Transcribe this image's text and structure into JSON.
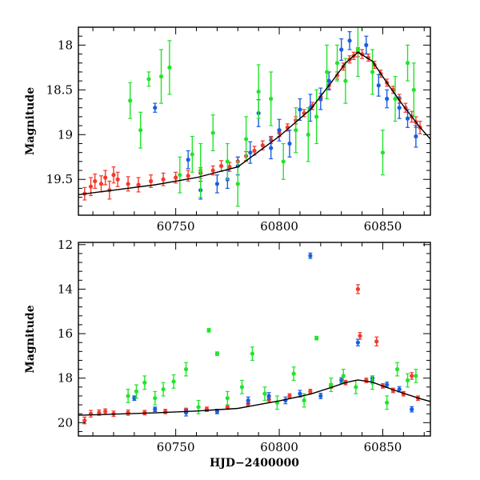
{
  "colors": {
    "green": "#22e52a",
    "blue": "#1a5fe0",
    "red": "#f23b2b",
    "model": "#000000"
  },
  "chart_data": [
    {
      "type": "scatter",
      "xlabel": "",
      "ylabel": "Magnitude",
      "xlim": [
        60703,
        60873
      ],
      "ylim": [
        19.9,
        17.8
      ],
      "y_inverted": true,
      "xticks": [
        60750,
        60800,
        60850
      ],
      "yticks": [
        18,
        18.5,
        19,
        19.5
      ],
      "error_bars": true,
      "grid": false,
      "legend": "none",
      "model_curve": {
        "x": [
          60703,
          60720,
          60740,
          60760,
          60780,
          60800,
          60815,
          60825,
          60832,
          60838,
          60845,
          60852,
          60860,
          60868,
          60873
        ],
        "y": [
          19.67,
          19.62,
          19.56,
          19.48,
          19.36,
          19.02,
          18.72,
          18.42,
          18.2,
          18.08,
          18.18,
          18.42,
          18.68,
          18.92,
          19.05
        ]
      },
      "series": [
        {
          "color_key": "red",
          "points": [
            [
              60706,
              19.66,
              0.07
            ],
            [
              60709,
              19.58,
              0.1
            ],
            [
              60711,
              19.52,
              0.08
            ],
            [
              60714,
              19.55,
              0.09
            ],
            [
              60716,
              19.48,
              0.08
            ],
            [
              60718,
              19.62,
              0.1
            ],
            [
              60720,
              19.45,
              0.09
            ],
            [
              60722,
              19.5,
              0.08
            ],
            [
              60727,
              19.55,
              0.08
            ],
            [
              60732,
              19.56,
              0.08
            ],
            [
              60738,
              19.52,
              0.07
            ],
            [
              60744,
              19.5,
              0.07
            ],
            [
              60750,
              19.48,
              0.06
            ],
            [
              60756,
              19.46,
              0.06
            ],
            [
              60762,
              19.43,
              0.06
            ],
            [
              60768,
              19.4,
              0.05
            ],
            [
              60772,
              19.35,
              0.06
            ],
            [
              60776,
              19.36,
              0.05
            ],
            [
              60780,
              19.3,
              0.05
            ],
            [
              60784,
              19.24,
              0.05
            ],
            [
              60788,
              19.18,
              0.05
            ],
            [
              60792,
              19.12,
              0.05
            ],
            [
              60796,
              19.06,
              0.04
            ],
            [
              60800,
              18.98,
              0.04
            ],
            [
              60804,
              18.92,
              0.04
            ],
            [
              60808,
              18.84,
              0.04
            ],
            [
              60812,
              18.76,
              0.04
            ],
            [
              60816,
              18.68,
              0.04
            ],
            [
              60820,
              18.58,
              0.04
            ],
            [
              60824,
              18.45,
              0.04
            ],
            [
              60828,
              18.34,
              0.04
            ],
            [
              60831,
              18.24,
              0.04
            ],
            [
              60834,
              18.16,
              0.04
            ],
            [
              60836,
              18.12,
              0.04
            ],
            [
              60838,
              18.08,
              0.05
            ],
            [
              60840,
              18.1,
              0.05
            ],
            [
              60843,
              18.14,
              0.04
            ],
            [
              60846,
              18.22,
              0.04
            ],
            [
              60849,
              18.32,
              0.04
            ],
            [
              60852,
              18.42,
              0.04
            ],
            [
              60855,
              18.5,
              0.04
            ],
            [
              60858,
              18.6,
              0.05
            ],
            [
              60861,
              18.7,
              0.05
            ],
            [
              60864,
              18.8,
              0.06
            ],
            [
              60866,
              18.86,
              0.06
            ],
            [
              60868,
              18.92,
              0.07
            ]
          ]
        },
        {
          "color_key": "blue",
          "points": [
            [
              60740,
              18.7,
              0.05
            ],
            [
              60756,
              19.28,
              0.1
            ],
            [
              60762,
              19.62,
              0.1
            ],
            [
              60770,
              19.55,
              0.1
            ],
            [
              60775,
              19.5,
              0.1
            ],
            [
              60780,
              19.35,
              0.1
            ],
            [
              60786,
              19.2,
              0.12
            ],
            [
              60790,
              18.76,
              0.15
            ],
            [
              60796,
              19.15,
              0.12
            ],
            [
              60800,
              18.95,
              0.12
            ],
            [
              60805,
              19.1,
              0.15
            ],
            [
              60810,
              18.72,
              0.12
            ],
            [
              60815,
              18.7,
              0.15
            ],
            [
              60820,
              18.6,
              0.12
            ],
            [
              60824,
              18.4,
              0.1
            ],
            [
              60830,
              18.05,
              0.12
            ],
            [
              60834,
              17.95,
              0.1
            ],
            [
              60842,
              18.0,
              0.1
            ],
            [
              60848,
              18.45,
              0.12
            ],
            [
              60852,
              18.6,
              0.1
            ],
            [
              60858,
              18.7,
              0.12
            ],
            [
              60862,
              18.82,
              0.1
            ],
            [
              60866,
              19.02,
              0.12
            ]
          ]
        },
        {
          "color_key": "green",
          "points": [
            [
              60728,
              18.62,
              0.2
            ],
            [
              60733,
              18.95,
              0.2
            ],
            [
              60737,
              18.38,
              0.08
            ],
            [
              60743,
              18.35,
              0.3
            ],
            [
              60747,
              18.25,
              0.3
            ],
            [
              60752,
              19.45,
              0.2
            ],
            [
              60758,
              19.22,
              0.2
            ],
            [
              60762,
              19.4,
              0.3
            ],
            [
              60768,
              18.98,
              0.2
            ],
            [
              60775,
              19.3,
              0.2
            ],
            [
              60780,
              19.55,
              0.25
            ],
            [
              60784,
              19.05,
              0.25
            ],
            [
              60790,
              18.52,
              0.3
            ],
            [
              60796,
              18.6,
              0.3
            ],
            [
              60802,
              19.3,
              0.2
            ],
            [
              60808,
              18.95,
              0.25
            ],
            [
              60814,
              19.0,
              0.3
            ],
            [
              60818,
              18.8,
              0.3
            ],
            [
              60823,
              18.3,
              0.3
            ],
            [
              60828,
              18.2,
              0.2
            ],
            [
              60832,
              18.4,
              0.25
            ],
            [
              60838,
              18.05,
              0.3
            ],
            [
              60845,
              18.3,
              0.25
            ],
            [
              60850,
              19.2,
              0.25
            ],
            [
              60856,
              18.6,
              0.25
            ],
            [
              60862,
              18.2,
              0.2
            ],
            [
              60865,
              18.5,
              0.3
            ]
          ]
        }
      ]
    },
    {
      "type": "scatter",
      "xlabel": "HJD−2400000",
      "ylabel": "Magnitude",
      "xlim": [
        60703,
        60873
      ],
      "ylim": [
        20.6,
        11.9
      ],
      "y_inverted": true,
      "xticks": [
        60750,
        60800,
        60850
      ],
      "yticks": [
        12,
        14,
        16,
        18,
        20
      ],
      "error_bars": true,
      "grid": false,
      "legend": "none",
      "model_curve": {
        "x": [
          60703,
          60720,
          60740,
          60760,
          60780,
          60800,
          60815,
          60825,
          60832,
          60838,
          60845,
          60852,
          60860,
          60868,
          60873
        ],
        "y": [
          19.67,
          19.62,
          19.56,
          19.48,
          19.36,
          19.02,
          18.72,
          18.42,
          18.2,
          18.08,
          18.18,
          18.42,
          18.68,
          18.92,
          19.05
        ]
      },
      "series": [
        {
          "color_key": "red",
          "points": [
            [
              60706,
              19.9,
              0.15
            ],
            [
              60709,
              19.6,
              0.15
            ],
            [
              60713,
              19.55,
              0.12
            ],
            [
              60716,
              19.5,
              0.12
            ],
            [
              60720,
              19.6,
              0.12
            ],
            [
              60727,
              19.55,
              0.12
            ],
            [
              60735,
              19.55,
              0.1
            ],
            [
              60745,
              19.5,
              0.1
            ],
            [
              60755,
              19.45,
              0.1
            ],
            [
              60765,
              19.4,
              0.1
            ],
            [
              60775,
              19.3,
              0.1
            ],
            [
              60785,
              19.15,
              0.1
            ],
            [
              60795,
              18.95,
              0.1
            ],
            [
              60805,
              18.8,
              0.1
            ],
            [
              60815,
              18.6,
              0.1
            ],
            [
              60825,
              18.35,
              0.1
            ],
            [
              60832,
              18.2,
              0.1
            ],
            [
              60838,
              14.0,
              0.2
            ],
            [
              60839,
              16.1,
              0.15
            ],
            [
              60842,
              18.1,
              0.1
            ],
            [
              60847,
              16.35,
              0.2
            ],
            [
              60850,
              18.35,
              0.1
            ],
            [
              60855,
              18.55,
              0.1
            ],
            [
              60860,
              18.7,
              0.1
            ],
            [
              60864,
              17.9,
              0.15
            ],
            [
              60867,
              18.9,
              0.1
            ]
          ]
        },
        {
          "color_key": "blue",
          "points": [
            [
              60730,
              18.9,
              0.1
            ],
            [
              60740,
              19.4,
              0.1
            ],
            [
              60755,
              19.55,
              0.15
            ],
            [
              60770,
              19.5,
              0.1
            ],
            [
              60785,
              19.0,
              0.15
            ],
            [
              60795,
              18.8,
              0.15
            ],
            [
              60803,
              19.0,
              0.15
            ],
            [
              60810,
              18.7,
              0.15
            ],
            [
              60815,
              12.5,
              0.12
            ],
            [
              60820,
              18.8,
              0.12
            ],
            [
              60830,
              18.1,
              0.12
            ],
            [
              60838,
              16.4,
              0.15
            ],
            [
              60845,
              18.0,
              0.1
            ],
            [
              60852,
              18.3,
              0.12
            ],
            [
              60858,
              18.5,
              0.12
            ],
            [
              60864,
              19.4,
              0.12
            ]
          ]
        },
        {
          "color_key": "green",
          "points": [
            [
              60727,
              18.8,
              0.3
            ],
            [
              60731,
              18.6,
              0.3
            ],
            [
              60735,
              18.2,
              0.3
            ],
            [
              60740,
              18.9,
              0.3
            ],
            [
              60744,
              18.5,
              0.3
            ],
            [
              60749,
              18.15,
              0.3
            ],
            [
              60755,
              17.6,
              0.3
            ],
            [
              60761,
              19.3,
              0.3
            ],
            [
              60766,
              15.85,
              0.08
            ],
            [
              60770,
              16.9,
              0.08
            ],
            [
              60775,
              18.9,
              0.3
            ],
            [
              60782,
              18.4,
              0.3
            ],
            [
              60787,
              16.9,
              0.3
            ],
            [
              60793,
              18.7,
              0.3
            ],
            [
              60799,
              19.1,
              0.3
            ],
            [
              60807,
              17.8,
              0.3
            ],
            [
              60812,
              19.0,
              0.3
            ],
            [
              60818,
              16.2,
              0.08
            ],
            [
              60825,
              18.3,
              0.3
            ],
            [
              60831,
              17.9,
              0.3
            ],
            [
              60837,
              18.4,
              0.3
            ],
            [
              60845,
              18.2,
              0.3
            ],
            [
              60852,
              19.1,
              0.3
            ],
            [
              60857,
              17.6,
              0.3
            ],
            [
              60862,
              18.1,
              0.3
            ],
            [
              60866,
              17.9,
              0.3
            ]
          ]
        }
      ]
    }
  ]
}
